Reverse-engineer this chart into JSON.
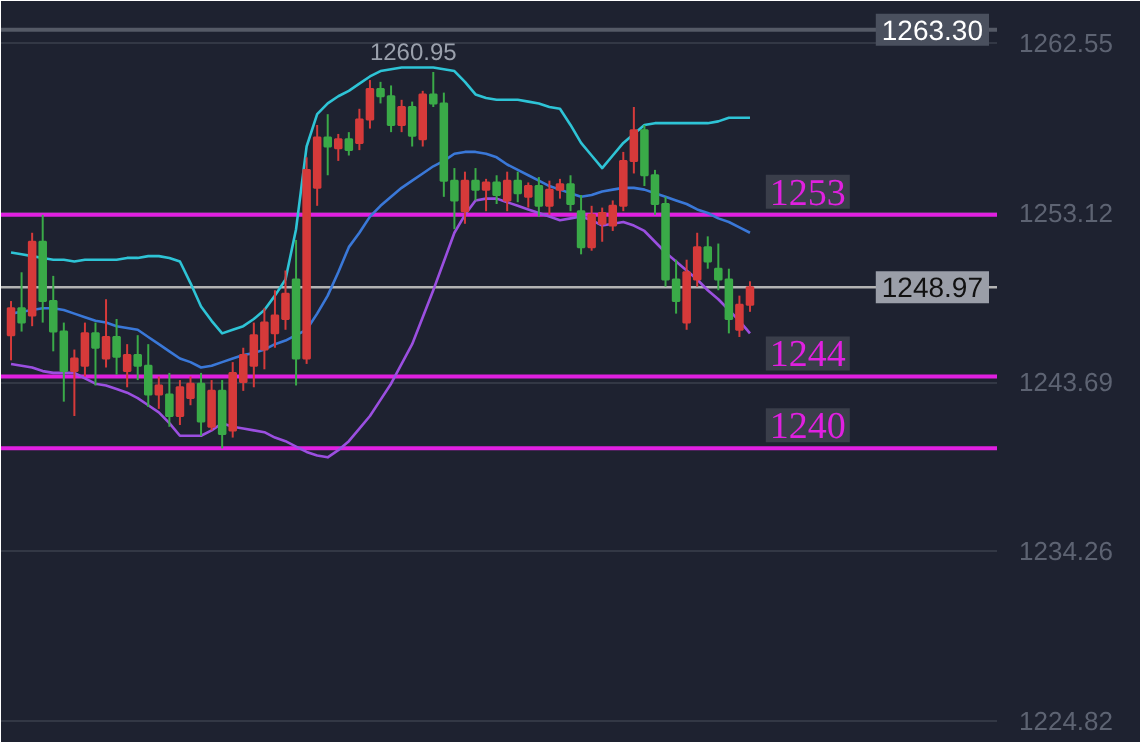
{
  "chart_data": {
    "type": "candlestick",
    "categories": [
      null,
      null,
      null,
      null,
      null,
      null,
      null,
      null,
      null,
      null,
      null,
      null,
      null,
      null,
      null,
      null,
      null,
      null,
      null,
      null,
      null,
      null,
      null,
      null,
      null,
      null,
      null,
      null,
      null,
      null,
      null,
      null,
      null,
      null,
      null,
      null,
      null,
      null,
      null,
      null,
      null,
      null,
      null,
      null,
      null,
      null,
      null,
      null,
      null,
      null,
      null,
      null,
      null,
      null,
      null,
      null,
      null,
      null,
      null,
      null,
      null,
      null,
      null,
      null,
      null,
      null,
      null,
      null,
      null,
      null,
      null
    ],
    "ohlc": [
      [
        1246.3,
        1248.2,
        1244.9,
        1247.8
      ],
      [
        1247.8,
        1249.8,
        1246.5,
        1247.0
      ],
      [
        1247.4,
        1252.0,
        1246.8,
        1251.5
      ],
      [
        1251.5,
        1253.0,
        1247.0,
        1248.2
      ],
      [
        1248.2,
        1249.6,
        1245.4,
        1246.5
      ],
      [
        1246.5,
        1247.0,
        1242.6,
        1244.3
      ],
      [
        1244.3,
        1245.5,
        1241.8,
        1245.0
      ],
      [
        1244.6,
        1247.0,
        1244.0,
        1246.4
      ],
      [
        1246.4,
        1247.0,
        1243.5,
        1245.6
      ],
      [
        1245.0,
        1248.3,
        1244.5,
        1246.2
      ],
      [
        1246.2,
        1247.2,
        1244.1,
        1245.1
      ],
      [
        1244.3,
        1245.8,
        1243.4,
        1245.2
      ],
      [
        1245.2,
        1246.3,
        1243.8,
        1244.6
      ],
      [
        1244.6,
        1245.8,
        1242.3,
        1243.0
      ],
      [
        1243.0,
        1244.0,
        1242.2,
        1243.5
      ],
      [
        1243.0,
        1244.2,
        1241.2,
        1241.8
      ],
      [
        1241.8,
        1243.8,
        1241.3,
        1243.4
      ],
      [
        1242.8,
        1244.0,
        1242.4,
        1243.6
      ],
      [
        1243.6,
        1244.2,
        1240.7,
        1241.5
      ],
      [
        1241.2,
        1243.8,
        1241.0,
        1243.2
      ],
      [
        1243.2,
        1243.8,
        1240.0,
        1240.8
      ],
      [
        1241.0,
        1244.8,
        1240.6,
        1244.2
      ],
      [
        1243.7,
        1245.6,
        1243.2,
        1245.2
      ],
      [
        1244.6,
        1247.0,
        1243.4,
        1246.3
      ],
      [
        1245.5,
        1247.8,
        1244.4,
        1247.0
      ],
      [
        1246.4,
        1248.8,
        1245.6,
        1247.4
      ],
      [
        1247.2,
        1249.9,
        1246.6,
        1248.6
      ],
      [
        1249.4,
        1251.6,
        1243.5,
        1245.0
      ],
      [
        1245.0,
        1256.2,
        1244.7,
        1255.5
      ],
      [
        1254.5,
        1258.0,
        1253.5,
        1257.3
      ],
      [
        1257.3,
        1258.6,
        1255.2,
        1256.8
      ],
      [
        1256.7,
        1257.5,
        1256.0,
        1257.2
      ],
      [
        1257.2,
        1257.6,
        1256.3,
        1256.6
      ],
      [
        1257.0,
        1258.9,
        1256.6,
        1258.3
      ],
      [
        1258.3,
        1260.5,
        1257.8,
        1260.0
      ],
      [
        1260.0,
        1260.4,
        1259.2,
        1259.6
      ],
      [
        1259.6,
        1260.2,
        1257.6,
        1258.0
      ],
      [
        1258.0,
        1259.4,
        1257.6,
        1259.0
      ],
      [
        1259.0,
        1259.3,
        1256.8,
        1257.4
      ],
      [
        1257.2,
        1259.9,
        1256.8,
        1259.7
      ],
      [
        1259.7,
        1260.95,
        1259.0,
        1259.2
      ],
      [
        1259.2,
        1259.8,
        1254.0,
        1254.9
      ],
      [
        1254.9,
        1255.6,
        1252.2,
        1253.8
      ],
      [
        1253.2,
        1255.4,
        1252.5,
        1254.9
      ],
      [
        1254.9,
        1255.6,
        1253.8,
        1254.4
      ],
      [
        1254.4,
        1255.0,
        1253.2,
        1254.8
      ],
      [
        1254.8,
        1255.2,
        1253.6,
        1254.1
      ],
      [
        1253.8,
        1255.4,
        1253.2,
        1254.9
      ],
      [
        1254.9,
        1255.4,
        1253.7,
        1254.2
      ],
      [
        1254.0,
        1254.8,
        1253.4,
        1254.6
      ],
      [
        1254.6,
        1255.1,
        1252.9,
        1253.5
      ],
      [
        1253.5,
        1254.9,
        1253.0,
        1254.4
      ],
      [
        1254.4,
        1255.0,
        1253.9,
        1254.7
      ],
      [
        1254.7,
        1255.2,
        1253.2,
        1253.6
      ],
      [
        1253.2,
        1254.1,
        1250.8,
        1251.2
      ],
      [
        1251.2,
        1253.5,
        1251.0,
        1253.0
      ],
      [
        1252.5,
        1253.4,
        1251.5,
        1253.1
      ],
      [
        1252.4,
        1253.8,
        1252.1,
        1253.5
      ],
      [
        1253.5,
        1256.5,
        1253.2,
        1256.0
      ],
      [
        1256.0,
        1259.0,
        1255.3,
        1257.7
      ],
      [
        1257.7,
        1258.0,
        1254.6,
        1255.2
      ],
      [
        1255.2,
        1255.5,
        1253.0,
        1253.6
      ],
      [
        1253.6,
        1254.0,
        1249.0,
        1249.4
      ],
      [
        1249.4,
        1250.5,
        1247.5,
        1248.2
      ],
      [
        1247.0,
        1250.5,
        1246.6,
        1249.8
      ],
      [
        1249.4,
        1252.0,
        1249.0,
        1251.2
      ],
      [
        1251.2,
        1251.8,
        1250.0,
        1250.4
      ],
      [
        1250.0,
        1251.4,
        1248.8,
        1249.4
      ],
      [
        1249.4,
        1250.0,
        1246.4,
        1247.2
      ],
      [
        1246.6,
        1248.5,
        1246.2,
        1248.0
      ],
      [
        1248.0,
        1249.3,
        1247.6,
        1248.97
      ]
    ],
    "colors": [
      "#d63a3a",
      "#3aaa48",
      "#d63a3a",
      "#3aaa48",
      "#3aaa48",
      "#3aaa48",
      "#d63a3a",
      "#d63a3a",
      "#3aaa48",
      "#d63a3a",
      "#3aaa48",
      "#d63a3a",
      "#3aaa48",
      "#3aaa48",
      "#d63a3a",
      "#3aaa48",
      "#d63a3a",
      "#d63a3a",
      "#3aaa48",
      "#d63a3a",
      "#3aaa48",
      "#d63a3a",
      "#d63a3a",
      "#d63a3a",
      "#d63a3a",
      "#d63a3a",
      "#d63a3a",
      "#3aaa48",
      "#d63a3a",
      "#d63a3a",
      "#3aaa48",
      "#d63a3a",
      "#3aaa48",
      "#d63a3a",
      "#d63a3a",
      "#3aaa48",
      "#3aaa48",
      "#d63a3a",
      "#3aaa48",
      "#d63a3a",
      "#3aaa48",
      "#3aaa48",
      "#3aaa48",
      "#d63a3a",
      "#3aaa48",
      "#d63a3a",
      "#3aaa48",
      "#d63a3a",
      "#3aaa48",
      "#d63a3a",
      "#3aaa48",
      "#d63a3a",
      "#d63a3a",
      "#3aaa48",
      "#3aaa48",
      "#d63a3a",
      "#d63a3a",
      "#d63a3a",
      "#d63a3a",
      "#d63a3a",
      "#3aaa48",
      "#3aaa48",
      "#3aaa48",
      "#3aaa48",
      "#d63a3a",
      "#d63a3a",
      "#3aaa48",
      "#3aaa48",
      "#3aaa48",
      "#d63a3a",
      "#d63a3a"
    ],
    "series": [
      {
        "type": "line",
        "color": "#2ec4d6",
        "values": [
          1250.9,
          1250.8,
          1250.7,
          1250.6,
          1250.5,
          1250.5,
          1250.4,
          1250.5,
          1250.5,
          1250.5,
          1250.5,
          1250.6,
          1250.6,
          1250.7,
          1250.7,
          1250.6,
          1250.4,
          1249.2,
          1247.9,
          1247.1,
          1246.4,
          1246.6,
          1246.8,
          1247.2,
          1247.7,
          1248.5,
          1249.4,
          1252.2,
          1256.8,
          1258.6,
          1259.2,
          1259.6,
          1259.9,
          1260.3,
          1260.7,
          1261.0,
          1261.1,
          1261.2,
          1261.2,
          1261.2,
          1261.2,
          1261.1,
          1261.0,
          1260.4,
          1259.7,
          1259.5,
          1259.4,
          1259.4,
          1259.4,
          1259.3,
          1259.2,
          1259.0,
          1258.9,
          1258.0,
          1257.0,
          1256.3,
          1255.6,
          1256.3,
          1257.0,
          1257.5,
          1258.0,
          1258.1,
          1258.1,
          1258.1,
          1258.1,
          1258.1,
          1258.1,
          1258.2,
          1258.4,
          1258.4,
          1258.4
        ]
      },
      {
        "type": "line",
        "color": "#3a78d8",
        "values": [
          1247.5,
          1247.6,
          1247.7,
          1247.8,
          1247.8,
          1247.7,
          1247.5,
          1247.3,
          1247.1,
          1247.0,
          1246.8,
          1246.7,
          1246.6,
          1246.2,
          1245.8,
          1245.4,
          1245.0,
          1244.8,
          1244.5,
          1244.6,
          1244.8,
          1245.0,
          1245.2,
          1245.3,
          1245.5,
          1245.8,
          1246.0,
          1246.3,
          1246.6,
          1247.5,
          1248.5,
          1249.8,
          1251.2,
          1252.0,
          1252.9,
          1253.5,
          1254.0,
          1254.5,
          1254.9,
          1255.3,
          1255.7,
          1256.0,
          1256.4,
          1256.5,
          1256.5,
          1256.4,
          1256.2,
          1255.8,
          1255.5,
          1255.2,
          1254.9,
          1254.6,
          1254.4,
          1254.2,
          1254.0,
          1254.1,
          1254.3,
          1254.4,
          1254.5,
          1254.5,
          1254.4,
          1254.2,
          1254.0,
          1253.8,
          1253.6,
          1253.3,
          1253.1,
          1252.8,
          1252.6,
          1252.3,
          1252.0
        ]
      },
      {
        "type": "line",
        "color": "#9b4fe0",
        "values": [
          1244.7,
          1244.6,
          1244.5,
          1244.3,
          1244.2,
          1244.2,
          1244.2,
          1243.9,
          1243.6,
          1243.5,
          1243.3,
          1243.1,
          1242.8,
          1242.4,
          1242.0,
          1241.4,
          1240.7,
          1240.7,
          1240.7,
          1241.0,
          1241.4,
          1241.2,
          1241.1,
          1241.0,
          1240.9,
          1240.6,
          1240.4,
          1240.1,
          1239.8,
          1239.6,
          1239.5,
          1239.9,
          1240.4,
          1241.1,
          1241.8,
          1242.7,
          1243.6,
          1244.7,
          1245.8,
          1247.3,
          1248.8,
          1250.4,
          1252.0,
          1253.0,
          1253.8,
          1253.9,
          1253.9,
          1253.7,
          1253.5,
          1253.3,
          1253.1,
          1252.9,
          1252.7,
          1252.8,
          1252.9,
          1252.7,
          1252.4,
          1252.5,
          1252.6,
          1252.4,
          1252.1,
          1251.5,
          1250.9,
          1250.4,
          1249.9,
          1249.4,
          1248.8,
          1248.3,
          1247.7,
          1247.1,
          1246.4
        ]
      }
    ],
    "ylim": [
      1223.6,
      1264.9
    ],
    "yticks": [
      1224.82,
      1234.26,
      1243.69,
      1253.12,
      1262.55
    ],
    "ref_lines": [
      {
        "axis": "y",
        "value": 1263.3,
        "label": "1263.30",
        "color": "#555a66"
      },
      {
        "axis": "y",
        "value": 1253,
        "label": "1253",
        "color": "#e020e0"
      },
      {
        "axis": "y",
        "value": 1248.97,
        "label": "1248.97",
        "color": "#b4b4b4"
      },
      {
        "axis": "y",
        "value": 1244,
        "label": "1244",
        "color": "#e020e0"
      },
      {
        "axis": "y",
        "value": 1240,
        "label": "1240",
        "color": "#e020e0"
      }
    ],
    "annotations": [
      "1260.95"
    ],
    "grid": "y",
    "tick_labels": "y"
  }
}
